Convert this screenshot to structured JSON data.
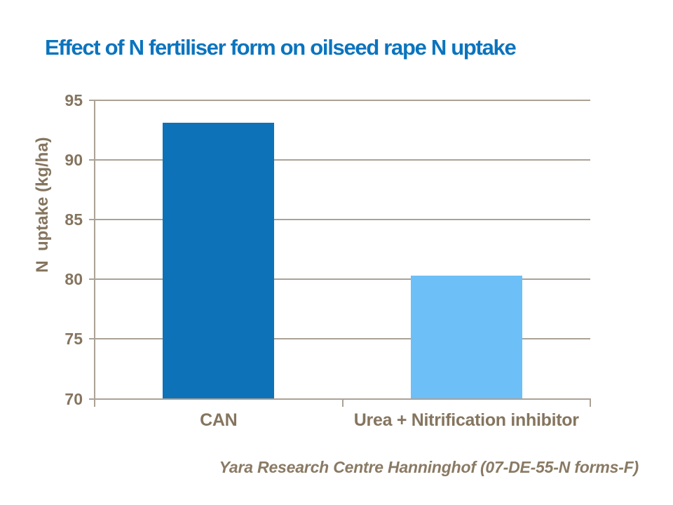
{
  "title": "Effect of N fertiliser form on oilseed rape N uptake",
  "footer": {
    "text": "Yara Research Centre Hanninghof (07-DE-55-N forms-F)"
  },
  "colors": {
    "background": "#ffffff",
    "title": "#0b74be",
    "axis_text": "#85755f",
    "gridline": "#aba296",
    "footer_text": "#8a7a64",
    "bar_can": "#0e72b9",
    "bar_urea": "#6dbff7"
  },
  "chart_data": {
    "type": "bar",
    "title": "Effect of N fertiliser form on oilseed rape N uptake",
    "categories": [
      "CAN",
      "Urea + Nitrification inhibitor"
    ],
    "values": [
      93.1,
      80.3
    ],
    "series_colors": [
      "#0e72b9",
      "#6dbff7"
    ],
    "xlabel": "",
    "ylabel": "N  uptake (kg/ha)",
    "ylim": [
      70,
      95
    ],
    "yticks": [
      70,
      75,
      80,
      85,
      90,
      95
    ],
    "grid": true,
    "legend": false
  }
}
